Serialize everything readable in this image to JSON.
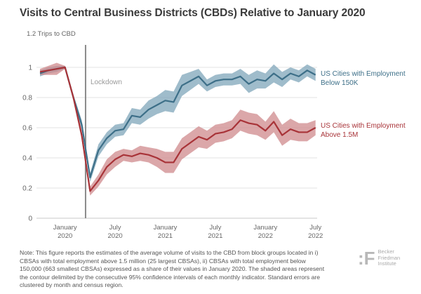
{
  "chart_data": {
    "type": "line",
    "title": "Visits to Central Business Districts (CBDs) Relative to January 2020",
    "ylabel": "1.2 Trips to CBD",
    "xlabel": "",
    "ylim": [
      0,
      1.2
    ],
    "yticks": [
      "0",
      "0.2",
      "0.4",
      "0.6",
      "0.8",
      "1"
    ],
    "ytick_values": [
      0,
      0.2,
      0.4,
      0.6,
      0.8,
      1
    ],
    "xticks": [
      {
        "line1": "January",
        "line2": "2020",
        "month_index": 3
      },
      {
        "line1": "July",
        "line2": "2020",
        "month_index": 9
      },
      {
        "line1": "January",
        "line2": "2021",
        "month_index": 15
      },
      {
        "line1": "July",
        "line2": "2021",
        "month_index": 21
      },
      {
        "line1": "January",
        "line2": "2022",
        "month_index": 27
      },
      {
        "line1": "July",
        "line2": "2022",
        "month_index": 33
      }
    ],
    "x_start": "2019-10",
    "x_frequency": "monthly",
    "grid": true,
    "annotation": {
      "label": "Lockdown",
      "month_index": 5.5
    },
    "series": [
      {
        "name": "US Cities with Employment Below 150K",
        "label_line1": "US Cities with Employment",
        "label_line2": "Below 150K",
        "color": "#3d6f88",
        "band_color": "#7fa6b9",
        "values": [
          0.96,
          0.98,
          0.99,
          1.0,
          0.8,
          0.62,
          0.27,
          0.45,
          0.53,
          0.58,
          0.59,
          0.68,
          0.67,
          0.72,
          0.75,
          0.78,
          0.77,
          0.88,
          0.91,
          0.94,
          0.88,
          0.91,
          0.92,
          0.92,
          0.94,
          0.89,
          0.92,
          0.91,
          0.96,
          0.92,
          0.96,
          0.94,
          0.98,
          0.95
        ],
        "ci": [
          0.02,
          0.02,
          0.02,
          0.01,
          0.02,
          0.03,
          0.03,
          0.04,
          0.04,
          0.04,
          0.04,
          0.05,
          0.05,
          0.06,
          0.06,
          0.07,
          0.07,
          0.07,
          0.06,
          0.05,
          0.04,
          0.04,
          0.04,
          0.04,
          0.05,
          0.06,
          0.06,
          0.05,
          0.06,
          0.05,
          0.04,
          0.04,
          0.04,
          0.04
        ]
      },
      {
        "name": "US Cities with Employment Above 1.5M",
        "label_line1": "US Cities with Employment",
        "label_line2": "Above 1.5M",
        "color": "#a83338",
        "band_color": "#cf8a8c",
        "values": [
          0.97,
          0.98,
          0.99,
          1.0,
          0.8,
          0.55,
          0.18,
          0.25,
          0.34,
          0.39,
          0.42,
          0.41,
          0.43,
          0.42,
          0.4,
          0.37,
          0.37,
          0.46,
          0.5,
          0.54,
          0.52,
          0.56,
          0.57,
          0.59,
          0.65,
          0.63,
          0.62,
          0.58,
          0.64,
          0.55,
          0.59,
          0.57,
          0.57,
          0.6
        ],
        "ci": [
          0.02,
          0.03,
          0.04,
          0.01,
          0.02,
          0.03,
          0.03,
          0.04,
          0.05,
          0.05,
          0.04,
          0.04,
          0.05,
          0.05,
          0.06,
          0.07,
          0.07,
          0.07,
          0.07,
          0.07,
          0.06,
          0.06,
          0.06,
          0.06,
          0.07,
          0.07,
          0.07,
          0.06,
          0.07,
          0.07,
          0.07,
          0.06,
          0.06,
          0.05
        ]
      }
    ]
  },
  "note": "Note: This figure reports the estimates of the average volume of visits to the CBD from block groups located in i) CBSAs with total employment above 1.5 million (25 largest CBSAs), ii) CBSAs with total employment below 150,000 (663 smallest CBSAs) expressed as a share of their values in January 2020. The shaded areas represent the contour delimited by the consecutive 95% confidence intervals of each monthly indicator. Standard errors are clustered by month and census region.",
  "logo": {
    "mark": "BF",
    "line1": "Becker",
    "line2": "Friedman",
    "line3": "Institute"
  }
}
